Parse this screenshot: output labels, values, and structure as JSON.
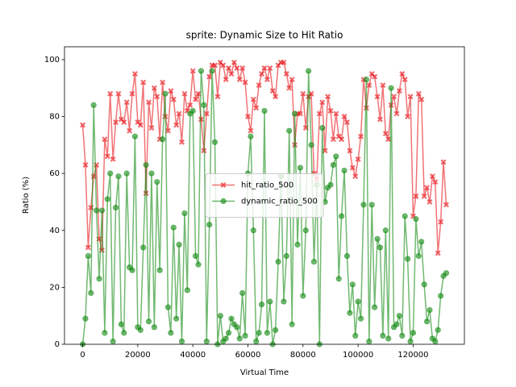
{
  "chart_data": {
    "type": "line",
    "title": "sprite: Dynamic Size to Hit Ratio",
    "xlabel": "Virtual Time",
    "ylabel": "Ratio (%)",
    "x": [
      0,
      1000,
      2000,
      3000,
      4000,
      5000,
      6000,
      7000,
      8000,
      9000,
      10000,
      11000,
      12000,
      13000,
      14000,
      15000,
      16000,
      17000,
      18000,
      19000,
      20000,
      21000,
      22000,
      23000,
      24000,
      25000,
      26000,
      27000,
      28000,
      29000,
      30000,
      31000,
      32000,
      33000,
      34000,
      35000,
      36000,
      37000,
      38000,
      39000,
      40000,
      41000,
      42000,
      43000,
      44000,
      45000,
      46000,
      47000,
      48000,
      49000,
      50000,
      51000,
      52000,
      53000,
      54000,
      55000,
      56000,
      57000,
      58000,
      59000,
      60000,
      61000,
      62000,
      63000,
      64000,
      65000,
      66000,
      67000,
      68000,
      69000,
      70000,
      71000,
      72000,
      73000,
      74000,
      75000,
      76000,
      77000,
      78000,
      79000,
      80000,
      81000,
      82000,
      83000,
      84000,
      85000,
      86000,
      87000,
      88000,
      89000,
      90000,
      91000,
      92000,
      93000,
      94000,
      95000,
      96000,
      97000,
      98000,
      99000,
      100000,
      101000,
      102000,
      103000,
      104000,
      105000,
      106000,
      107000,
      108000,
      109000,
      110000,
      111000,
      112000,
      113000,
      114000,
      115000,
      116000,
      117000,
      118000,
      119000,
      120000,
      121000,
      122000,
      123000,
      124000,
      125000,
      126000,
      127000,
      128000,
      129000,
      130000,
      131000,
      132000
    ],
    "series": [
      {
        "name": "hit_ratio_500",
        "color": "#e8161b",
        "marker": "X",
        "values": [
          77,
          63,
          34,
          48,
          59,
          63,
          37,
          33,
          72,
          66,
          88,
          65,
          78,
          88,
          79,
          78,
          85,
          75,
          88,
          95,
          78,
          77,
          92,
          53,
          85,
          76,
          90,
          87,
          72,
          92,
          80,
          75,
          89,
          86,
          77,
          81,
          71,
          88,
          82,
          84,
          96,
          86,
          88,
          79,
          68,
          81,
          94,
          98,
          98,
          87,
          99,
          98,
          93,
          97,
          95,
          99,
          97,
          93,
          97,
          92,
          80,
          75,
          86,
          83,
          91,
          95,
          97,
          93,
          97,
          89,
          87,
          98,
          99,
          99,
          95,
          90,
          93,
          70,
          81,
          81,
          88,
          76,
          87,
          88,
          60,
          58,
          81,
          85,
          68,
          87,
          82,
          72,
          81,
          73,
          72,
          80,
          78,
          68,
          62,
          59,
          65,
          73,
          93,
          83,
          91,
          95,
          94,
          87,
          79,
          91,
          74,
          72,
          84,
          87,
          81,
          89,
          95,
          93,
          80,
          87,
          45,
          52,
          88,
          86,
          52,
          55,
          50,
          59,
          57,
          32,
          43,
          64,
          49
        ]
      },
      {
        "name": "dynamic_ratio_500",
        "color": "#138a13",
        "marker": "o",
        "values": [
          0,
          9,
          31,
          18,
          84,
          47,
          23,
          47,
          4,
          51,
          60,
          1,
          48,
          59,
          7,
          4,
          60,
          27,
          26,
          73,
          6,
          5,
          34,
          63,
          8,
          60,
          6,
          57,
          26,
          72,
          88,
          13,
          4,
          41,
          9,
          35,
          1,
          46,
          19,
          81,
          82,
          31,
          28,
          96,
          84,
          1,
          42,
          96,
          71,
          0,
          10,
          1,
          2,
          4,
          9,
          7,
          6,
          2,
          18,
          3,
          60,
          73,
          40,
          1,
          4,
          14,
          82,
          4,
          15,
          0,
          5,
          29,
          59,
          15,
          31,
          75,
          7,
          81,
          35,
          62,
          17,
          40,
          96,
          70,
          29,
          56,
          0,
          76,
          50,
          55,
          56,
          63,
          66,
          23,
          45,
          61,
          31,
          11,
          21,
          3,
          15,
          9,
          49,
          93,
          1,
          49,
          13,
          37,
          34,
          3,
          40,
          2,
          90,
          6,
          7,
          10,
          3,
          45,
          30,
          1,
          4,
          44,
          31,
          36,
          21,
          8,
          12,
          2,
          1,
          5,
          17,
          24,
          25
        ]
      }
    ],
    "xlim": [
      -6600,
      138600
    ],
    "xticks": [
      0,
      20000,
      40000,
      60000,
      80000,
      100000,
      120000
    ],
    "ylim": [
      0,
      104.5
    ],
    "yticks": [
      0,
      20,
      40,
      60,
      80,
      100
    ],
    "legend": "center"
  }
}
